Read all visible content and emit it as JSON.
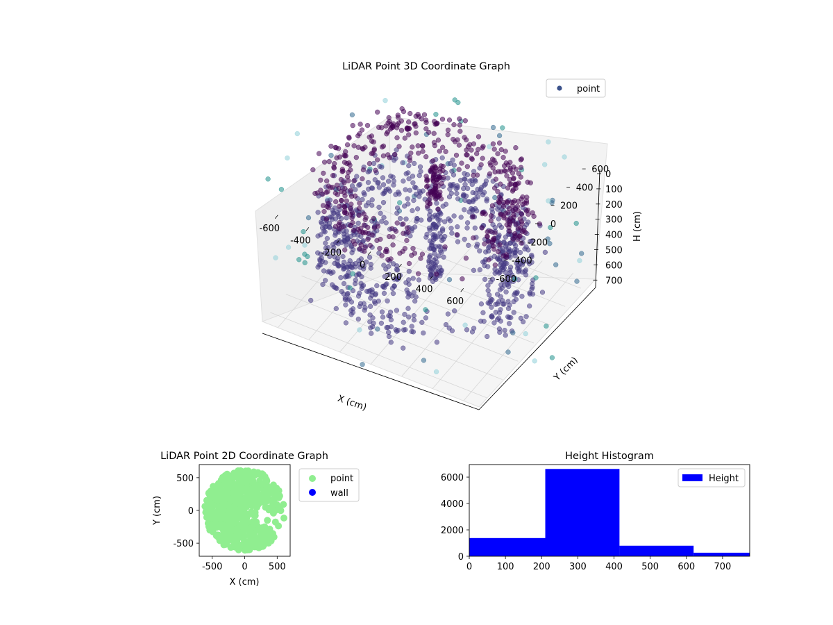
{
  "chart_data": [
    {
      "type": "scatter",
      "projection": "3d",
      "title": "LiDAR Point 3D Coordinate Graph",
      "xlabel": "X (cm)",
      "ylabel": "Y (cm)",
      "zlabel": "H (cm)",
      "x_ticks": [
        -600,
        -400,
        -200,
        0,
        200,
        400,
        600
      ],
      "y_ticks": [
        -600,
        -400,
        -200,
        0,
        200,
        400,
        600
      ],
      "z_ticks": [
        0,
        100,
        200,
        300,
        400,
        500,
        600,
        700
      ],
      "xlim": [
        -700,
        700
      ],
      "ylim": [
        -700,
        700
      ],
      "zlim": [
        0,
        780
      ],
      "z_inverted": true,
      "grid": true,
      "legend": {
        "location": "upper right",
        "entries": [
          "point"
        ]
      },
      "colormap": [
        "#440154",
        "#443983",
        "#31688e",
        "#21918c",
        "#8fd0d8"
      ],
      "series": [
        {
          "name": "point",
          "description_points": "dense ring of points, radius about 500-650 cm, heights 0-700 cm, plus a vertical cluster near x=0,y=100; sparse outliers beyond 600 cm"
        }
      ]
    },
    {
      "type": "scatter",
      "title": "LiDAR Point 2D Coordinate Graph",
      "xlabel": "X (cm)",
      "ylabel": "Y (cm)",
      "xlim": [
        -700,
        700
      ],
      "ylim": [
        -700,
        700
      ],
      "x_ticks": [
        -500,
        0,
        500
      ],
      "y_ticks": [
        -500,
        0,
        500
      ],
      "legend": {
        "location": "outside right",
        "entries": [
          "point",
          "wall"
        ]
      },
      "series": [
        {
          "name": "point",
          "color": "#90ee90",
          "extent": {
            "x": [
              -650,
              650
            ],
            "y": [
              -650,
              650
            ]
          }
        },
        {
          "name": "wall",
          "color": "#0000ff",
          "points": []
        }
      ]
    },
    {
      "type": "bar",
      "subtype": "histogram",
      "title": "Height Histogram",
      "xlabel": "",
      "ylabel": "",
      "xlim": [
        0,
        775
      ],
      "ylim": [
        0,
        6950
      ],
      "x_ticks": [
        0,
        100,
        200,
        300,
        400,
        500,
        600,
        700
      ],
      "y_ticks": [
        0,
        2000,
        4000,
        6000
      ],
      "legend": {
        "location": "upper right",
        "entries": [
          "Height"
        ]
      },
      "series": [
        {
          "name": "Height",
          "color": "#0000ff",
          "bins": [
            {
              "start": 0,
              "end": 210,
              "count": 1380
            },
            {
              "start": 210,
              "end": 415,
              "count": 6620
            },
            {
              "start": 415,
              "end": 620,
              "count": 800
            },
            {
              "start": 620,
              "end": 775,
              "count": 270
            }
          ]
        }
      ]
    }
  ]
}
